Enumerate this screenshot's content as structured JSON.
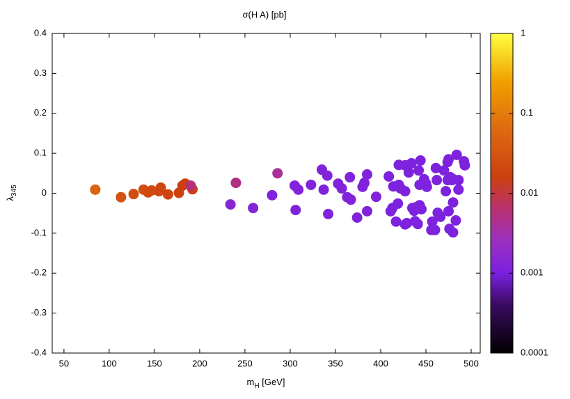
{
  "chart_data": {
    "type": "scatter",
    "title": "σ(H A) [pb]",
    "xlabel_parts": [
      "m",
      "H",
      " [GeV]"
    ],
    "ylabel_parts": [
      "λ",
      "345"
    ],
    "xlim": [
      37,
      510
    ],
    "xticks": [
      50,
      100,
      150,
      200,
      250,
      300,
      350,
      400,
      450,
      500
    ],
    "ylim": [
      -0.4,
      0.4
    ],
    "yticks": [
      -0.4,
      -0.3,
      -0.2,
      -0.1,
      0,
      0.1,
      0.2,
      0.3,
      0.4
    ],
    "cblim": [
      0.0001,
      1
    ],
    "cbticks": [
      1,
      0.1,
      0.01,
      0.001,
      0.0001
    ],
    "cb_log": true,
    "x": [
      84.6,
      113,
      127,
      138,
      143,
      147,
      155,
      157,
      165,
      177,
      181,
      184,
      192,
      190,
      240,
      234,
      259,
      286,
      280,
      305,
      309,
      306,
      323,
      335,
      337,
      341,
      342,
      353,
      357,
      363,
      366,
      367,
      374,
      380,
      382,
      385,
      385,
      395,
      409,
      411,
      413,
      414,
      417,
      420,
      419,
      420,
      422,
      427,
      427,
      427,
      429,
      431,
      434,
      435,
      437,
      438,
      439,
      441,
      442,
      443,
      443,
      445,
      444,
      448,
      450,
      451,
      456,
      457,
      460,
      461,
      462,
      463,
      466,
      470,
      472,
      474,
      475,
      474,
      475,
      477,
      476,
      480,
      480,
      479,
      480,
      484,
      483,
      486,
      486,
      492,
      493
    ],
    "values": [
      0.009,
      -0.01,
      -0.002,
      0.009,
      0.002,
      0.007,
      0.005,
      0.014,
      -0.003,
      0.001,
      0.019,
      0.024,
      0.01,
      0.019,
      0.026,
      -0.028,
      -0.037,
      0.05,
      -0.005,
      0.019,
      0.009,
      -0.042,
      0.021,
      0.059,
      0.009,
      0.044,
      -0.052,
      0.024,
      0.012,
      -0.01,
      0.04,
      -0.016,
      -0.061,
      0.016,
      0.026,
      0.047,
      -0.045,
      -0.009,
      0.042,
      -0.045,
      -0.037,
      0.017,
      -0.071,
      0.071,
      -0.026,
      0.021,
      0.012,
      0.07,
      -0.078,
      0.005,
      -0.075,
      0.052,
      0.075,
      -0.037,
      -0.044,
      -0.07,
      -0.035,
      -0.077,
      0.057,
      0.021,
      -0.03,
      -0.04,
      0.082,
      0.035,
      0.024,
      0.016,
      -0.092,
      -0.071,
      -0.092,
      0.063,
      0.033,
      -0.049,
      -0.059,
      0.057,
      0.005,
      0.078,
      0.085,
      0.033,
      -0.045,
      0.04,
      -0.089,
      -0.023,
      -0.098,
      0.033,
      0.035,
      0.096,
      -0.068,
      0.009,
      0.033,
      0.08,
      0.07
    ],
    "color_values": [
      0.05,
      0.03,
      0.025,
      0.025,
      0.022,
      0.022,
      0.02,
      0.02,
      0.018,
      0.017,
      0.016,
      0.016,
      0.015,
      0.006,
      0.005,
      0.0015,
      0.0013,
      0.004,
      0.0012,
      0.0012,
      0.0012,
      0.0012,
      0.0012,
      0.0012,
      0.0012,
      0.0012,
      0.0012,
      0.0012,
      0.0012,
      0.0012,
      0.0012,
      0.0012,
      0.0012,
      0.0012,
      0.0012,
      0.0012,
      0.0012,
      0.0012,
      0.0011,
      0.0011,
      0.0011,
      0.0011,
      0.0011,
      0.0011,
      0.0011,
      0.0011,
      0.0011,
      0.0011,
      0.0011,
      0.0011,
      0.0011,
      0.0011,
      0.0011,
      0.0011,
      0.0011,
      0.0011,
      0.0011,
      0.0011,
      0.0011,
      0.0011,
      0.0011,
      0.0011,
      0.0011,
      0.0011,
      0.0011,
      0.0011,
      0.0011,
      0.0011,
      0.0011,
      0.0011,
      0.0011,
      0.0011,
      0.0011,
      0.0011,
      0.0011,
      0.0011,
      0.0011,
      0.0011,
      0.0011,
      0.0011,
      0.0011,
      0.0011,
      0.0011,
      0.0011,
      0.0011,
      0.0011,
      0.0011,
      0.0011,
      0.0011,
      0.0011,
      0.0011
    ]
  }
}
